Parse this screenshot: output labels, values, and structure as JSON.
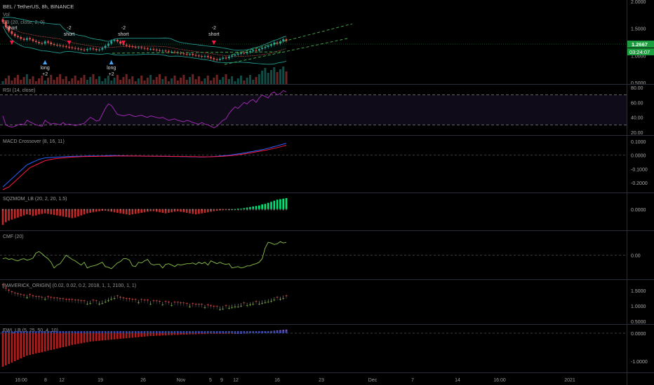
{
  "header": {
    "symbol": "BEL / TetherUS, 8h, BINANCE",
    "vol_label": "Vol",
    "bb_label": "BB (20, close, 2, 0)"
  },
  "price_axis": {
    "ticks": [
      "2.0000",
      "1.5000",
      "1.0000",
      "0.5000"
    ],
    "last_price": "1.2667",
    "countdown": "03:24:07"
  },
  "signals": [
    {
      "text": "short",
      "sub": "",
      "dir": "down",
      "bar": 3
    },
    {
      "text": "-2",
      "sub": "short",
      "dir": "down",
      "bar": 22
    },
    {
      "text": "long",
      "sub": "+2",
      "dir": "up",
      "bar": 14
    },
    {
      "text": "-2",
      "sub": "short",
      "dir": "down",
      "bar": 40
    },
    {
      "text": "long",
      "sub": "+2",
      "dir": "up",
      "bar": 36
    },
    {
      "text": "-2",
      "sub": "short",
      "dir": "down",
      "bar": 70
    }
  ],
  "panes": [
    {
      "label": "RSI (14, close)",
      "ticks": [
        "80.00",
        "60.00",
        "40.00",
        "20.00"
      ]
    },
    {
      "label": "MACD Crossover (8, 16, 11)",
      "ticks": [
        "0.1000",
        "0.0000",
        "-0.1000",
        "-0.2000"
      ]
    },
    {
      "label": "SQZMOM_LB (20, 2, 20, 1.5)",
      "ticks": [
        "0.0000"
      ]
    },
    {
      "label": "CMF (20)",
      "ticks": [
        "0.00"
      ]
    },
    {
      "label": "[MAVERICK_ORIGIN] (0.02, 0.02, 0.2, 2018, 1, 1, 2100, 1, 1)",
      "ticks": [
        "1.5000",
        "1.0000",
        "0.5000"
      ]
    },
    {
      "label": "EWI_LB (5, 25, 50, 4, 10)",
      "ticks": [
        "0.0000",
        "-1.0000"
      ]
    }
  ],
  "time_axis": [
    "16:00",
    "8",
    "12",
    "19",
    "26",
    "Nov",
    "5",
    "9",
    "12",
    "16",
    "23",
    "Dec",
    "7",
    "14",
    "16:00",
    "2021"
  ],
  "colors": {
    "up": "#26a69a",
    "down": "#ef5350",
    "rsi": "#9c27b0",
    "macd": "#2962ff",
    "signal": "#ff1744",
    "cmf": "#8bc34a",
    "sqz_pos": "#00e676",
    "sqz_neg": "#c62828",
    "last_price_bg": "#1b9e3e"
  },
  "chart_data": [
    {
      "type": "candlestick",
      "title": "BEL / TetherUS, 8h, BINANCE",
      "ylim": [
        0.5,
        2.0
      ],
      "series": [
        {
          "name": "Close",
          "values": [
            1.62,
            1.52,
            1.45,
            1.4,
            1.36,
            1.34,
            1.31,
            1.29,
            1.32,
            1.3,
            1.27,
            1.25,
            1.23,
            1.22,
            1.26,
            1.24,
            1.21,
            1.2,
            1.19,
            1.18,
            1.17,
            1.16,
            1.15,
            1.14,
            1.13,
            1.12,
            1.11,
            1.1,
            1.12,
            1.13,
            1.12,
            1.1,
            1.11,
            1.14,
            1.18,
            1.22,
            1.27,
            1.29,
            1.26,
            1.22,
            1.2,
            1.18,
            1.17,
            1.16,
            1.15,
            1.15,
            1.14,
            1.13,
            1.12,
            1.12,
            1.11,
            1.1,
            1.09,
            1.09,
            1.08,
            1.07,
            1.07,
            1.06,
            1.05,
            1.04,
            1.03,
            1.02,
            1.03,
            1.01,
            1.0,
            0.99,
            0.98,
            0.99,
            0.97,
            0.95,
            0.93,
            0.92,
            0.94,
            0.96,
            0.95,
            0.98,
            1.0,
            1.02,
            1.03,
            1.05,
            1.04,
            1.06,
            1.08,
            1.1,
            1.09,
            1.12,
            1.14,
            1.16,
            1.18,
            1.2,
            1.24,
            1.22,
            1.26,
            1.3,
            1.27
          ]
        }
      ]
    },
    {
      "type": "line",
      "title": "RSI (14, close)",
      "ylim": [
        20,
        80
      ],
      "series": [
        {
          "name": "RSI",
          "values": [
            42,
            30,
            28,
            27,
            28,
            30,
            31,
            30,
            36,
            34,
            32,
            30,
            29,
            28,
            36,
            33,
            31,
            32,
            31,
            30,
            33,
            30,
            31,
            30,
            29,
            30,
            31,
            32,
            36,
            40,
            38,
            35,
            36,
            44,
            52,
            58,
            56,
            50,
            44,
            43,
            42,
            43,
            44,
            42,
            41,
            42,
            43,
            41,
            40,
            42,
            41,
            40,
            39,
            40,
            38,
            36,
            37,
            38,
            36,
            35,
            34,
            36,
            35,
            33,
            32,
            31,
            33,
            31,
            30,
            28,
            26,
            28,
            32,
            36,
            38,
            45,
            50,
            54,
            52,
            56,
            60,
            58,
            62,
            64,
            60,
            66,
            70,
            68,
            66,
            72,
            74,
            70,
            72,
            76,
            74
          ]
        }
      ]
    },
    {
      "type": "line",
      "title": "MACD Crossover (8, 16, 11)",
      "ylim": [
        -0.25,
        0.12
      ],
      "series": [
        {
          "name": "MACD",
          "values": [
            -0.23,
            -0.21,
            -0.19,
            -0.17,
            -0.15,
            -0.13,
            -0.11,
            -0.09,
            -0.07,
            -0.06,
            -0.05,
            -0.04,
            -0.03,
            -0.025,
            -0.02,
            -0.018,
            -0.016,
            -0.015,
            -0.014,
            -0.013,
            -0.012,
            -0.011,
            -0.01,
            -0.009,
            -0.008,
            -0.008,
            -0.007,
            -0.007,
            -0.006,
            -0.006,
            -0.006,
            -0.006,
            -0.006,
            -0.005,
            -0.004,
            -0.003,
            -0.002,
            -0.002,
            -0.003,
            -0.004,
            -0.004,
            -0.005,
            -0.005,
            -0.006,
            -0.006,
            -0.006,
            -0.007,
            -0.007,
            -0.007,
            -0.007,
            -0.008,
            -0.008,
            -0.008,
            -0.009,
            -0.009,
            -0.009,
            -0.01,
            -0.01,
            -0.01,
            -0.011,
            -0.011,
            -0.011,
            -0.012,
            -0.012,
            -0.012,
            -0.013,
            -0.013,
            -0.013,
            -0.012,
            -0.011,
            -0.01,
            -0.008,
            -0.006,
            -0.004,
            -0.002,
            0.0,
            0.003,
            0.006,
            0.009,
            0.012,
            0.016,
            0.02,
            0.024,
            0.028,
            0.032,
            0.036,
            0.04,
            0.045,
            0.05,
            0.056,
            0.062,
            0.068,
            0.074,
            0.08,
            0.086
          ]
        },
        {
          "name": "Signal",
          "values": [
            -0.25,
            -0.24,
            -0.23,
            -0.21,
            -0.19,
            -0.17,
            -0.15,
            -0.13,
            -0.11,
            -0.09,
            -0.08,
            -0.07,
            -0.06,
            -0.05,
            -0.04,
            -0.035,
            -0.03,
            -0.027,
            -0.024,
            -0.022,
            -0.02,
            -0.018,
            -0.016,
            -0.014,
            -0.013,
            -0.012,
            -0.011,
            -0.01,
            -0.01,
            -0.009,
            -0.009,
            -0.009,
            -0.008,
            -0.008,
            -0.008,
            -0.007,
            -0.007,
            -0.006,
            -0.006,
            -0.006,
            -0.006,
            -0.006,
            -0.006,
            -0.006,
            -0.006,
            -0.006,
            -0.006,
            -0.007,
            -0.007,
            -0.007,
            -0.007,
            -0.007,
            -0.008,
            -0.008,
            -0.008,
            -0.008,
            -0.009,
            -0.009,
            -0.009,
            -0.01,
            -0.01,
            -0.01,
            -0.011,
            -0.011,
            -0.011,
            -0.012,
            -0.012,
            -0.012,
            -0.012,
            -0.012,
            -0.011,
            -0.01,
            -0.009,
            -0.008,
            -0.006,
            -0.004,
            -0.002,
            0.0,
            0.003,
            0.006,
            0.009,
            0.012,
            0.016,
            0.02,
            0.024,
            0.028,
            0.032,
            0.036,
            0.04,
            0.045,
            0.05,
            0.055,
            0.06,
            0.066,
            0.072
          ]
        }
      ]
    },
    {
      "type": "bar",
      "title": "SQZMOM_LB (20, 2, 20, 1.5)",
      "ylim": [
        -0.35,
        0.25
      ],
      "series": [
        {
          "name": "Momentum",
          "values": [
            -0.3,
            -0.25,
            -0.22,
            -0.2,
            -0.18,
            -0.16,
            -0.14,
            -0.12,
            -0.1,
            -0.11,
            -0.13,
            -0.12,
            -0.1,
            -0.09,
            -0.08,
            -0.09,
            -0.1,
            -0.11,
            -0.12,
            -0.13,
            -0.14,
            -0.15,
            -0.16,
            -0.17,
            -0.16,
            -0.14,
            -0.12,
            -0.1,
            -0.08,
            -0.07,
            -0.06,
            -0.05,
            -0.04,
            -0.03,
            -0.03,
            -0.04,
            -0.05,
            -0.06,
            -0.07,
            -0.08,
            -0.09,
            -0.1,
            -0.11,
            -0.1,
            -0.09,
            -0.08,
            -0.07,
            -0.06,
            -0.05,
            -0.04,
            -0.04,
            -0.05,
            -0.06,
            -0.07,
            -0.08,
            -0.07,
            -0.06,
            -0.05,
            -0.04,
            -0.05,
            -0.06,
            -0.07,
            -0.08,
            -0.09,
            -0.1,
            -0.09,
            -0.08,
            -0.07,
            -0.06,
            -0.05,
            -0.04,
            -0.03,
            -0.02,
            -0.02,
            -0.01,
            -0.01,
            0.0,
            0.0,
            0.01,
            0.01,
            0.02,
            0.03,
            0.04,
            0.05,
            0.06,
            0.07,
            0.09,
            0.1,
            0.12,
            0.14,
            0.16,
            0.18,
            0.19,
            0.2,
            0.21
          ]
        }
      ]
    },
    {
      "type": "line",
      "title": "CMF (20)",
      "ylim": [
        -0.3,
        0.3
      ],
      "series": [
        {
          "name": "CMF",
          "values": [
            -0.05,
            -0.04,
            -0.06,
            -0.05,
            -0.07,
            -0.08,
            -0.06,
            -0.05,
            -0.07,
            -0.06,
            -0.04,
            0.03,
            0.05,
            0.02,
            -0.02,
            -0.05,
            -0.1,
            -0.18,
            -0.14,
            -0.12,
            -0.06,
            0.0,
            -0.03,
            -0.06,
            -0.08,
            -0.11,
            -0.14,
            -0.1,
            -0.18,
            -0.16,
            -0.15,
            -0.14,
            -0.12,
            -0.1,
            -0.16,
            -0.17,
            -0.19,
            -0.15,
            -0.11,
            -0.09,
            -0.05,
            -0.05,
            -0.07,
            -0.15,
            -0.16,
            -0.1,
            -0.11,
            -0.08,
            -0.06,
            -0.12,
            -0.14,
            -0.13,
            -0.13,
            -0.18,
            -0.13,
            -0.12,
            -0.14,
            -0.16,
            -0.13,
            -0.14,
            -0.13,
            -0.12,
            -0.12,
            -0.11,
            -0.13,
            -0.1,
            -0.12,
            -0.1,
            -0.14,
            -0.08,
            -0.1,
            -0.12,
            -0.1,
            -0.12,
            -0.13,
            -0.12,
            -0.18,
            -0.17,
            -0.16,
            -0.18,
            -0.17,
            -0.15,
            -0.15,
            -0.13,
            -0.12,
            -0.1,
            -0.05,
            0.1,
            0.18,
            0.17,
            0.15,
            0.16,
            0.19,
            0.17,
            0.18
          ]
        }
      ]
    },
    {
      "type": "scatter",
      "title": "[MAVERICK_ORIGIN] (0.02, 0.02, 0.2, 2018, 1, 1, 2100, 1, 1)",
      "ylim": [
        0.5,
        1.75
      ],
      "series": [
        {
          "name": "Close",
          "values": [
            1.62,
            1.52,
            1.45,
            1.4,
            1.36,
            1.34,
            1.31,
            1.29,
            1.32,
            1.3,
            1.27,
            1.25,
            1.23,
            1.22,
            1.26,
            1.24,
            1.21,
            1.2,
            1.19,
            1.18,
            1.17,
            1.16,
            1.15,
            1.14,
            1.13,
            1.12,
            1.11,
            1.1,
            1.12,
            1.13,
            1.12,
            1.1,
            1.11,
            1.14,
            1.18,
            1.22,
            1.27,
            1.29,
            1.26,
            1.22,
            1.2,
            1.18,
            1.17,
            1.16,
            1.15,
            1.15,
            1.14,
            1.13,
            1.12,
            1.12,
            1.11,
            1.1,
            1.09,
            1.09,
            1.08,
            1.07,
            1.07,
            1.06,
            1.05,
            1.04,
            1.03,
            1.02,
            1.03,
            1.01,
            1.0,
            0.99,
            0.98,
            0.99,
            0.97,
            0.95,
            0.93,
            0.92,
            0.94,
            0.96,
            0.95,
            0.98,
            1.0,
            1.02,
            1.03,
            1.05,
            1.04,
            1.06,
            1.08,
            1.1,
            1.09,
            1.12,
            1.14,
            1.16,
            1.18,
            1.2,
            1.24,
            1.22,
            1.26,
            1.3,
            1.27
          ]
        }
      ]
    },
    {
      "type": "bar",
      "title": "EWI_LB (5, 25, 50, 4, 10)",
      "ylim": [
        -1.3,
        0.2
      ],
      "series": [
        {
          "name": "EWI",
          "values": [
            -1.2,
            -1.15,
            -1.1,
            -1.05,
            -1.0,
            -0.95,
            -0.9,
            -0.85,
            -0.8,
            -0.78,
            -0.75,
            -0.72,
            -0.7,
            -0.68,
            -0.65,
            -0.62,
            -0.6,
            -0.58,
            -0.55,
            -0.52,
            -0.5,
            -0.48,
            -0.45,
            -0.42,
            -0.4,
            -0.38,
            -0.36,
            -0.34,
            -0.32,
            -0.3,
            -0.29,
            -0.28,
            -0.27,
            -0.26,
            -0.25,
            -0.24,
            -0.23,
            -0.22,
            -0.21,
            -0.2,
            -0.19,
            -0.18,
            -0.17,
            -0.16,
            -0.15,
            -0.14,
            -0.13,
            -0.12,
            -0.11,
            -0.1,
            -0.1,
            -0.09,
            -0.09,
            -0.08,
            -0.08,
            -0.07,
            -0.07,
            -0.06,
            -0.06,
            -0.05,
            -0.05,
            -0.05,
            -0.04,
            -0.04,
            -0.04,
            -0.03,
            -0.03,
            -0.03,
            -0.02,
            -0.02,
            -0.02,
            -0.02,
            -0.01,
            -0.01,
            -0.01,
            -0.01,
            -0.01,
            0.0,
            0.0,
            0.0,
            0.01,
            0.01,
            0.02,
            0.02,
            0.03,
            0.04,
            0.05,
            0.06,
            0.07,
            0.08,
            0.09,
            0.1,
            0.11,
            0.12,
            0.13
          ]
        }
      ]
    }
  ]
}
